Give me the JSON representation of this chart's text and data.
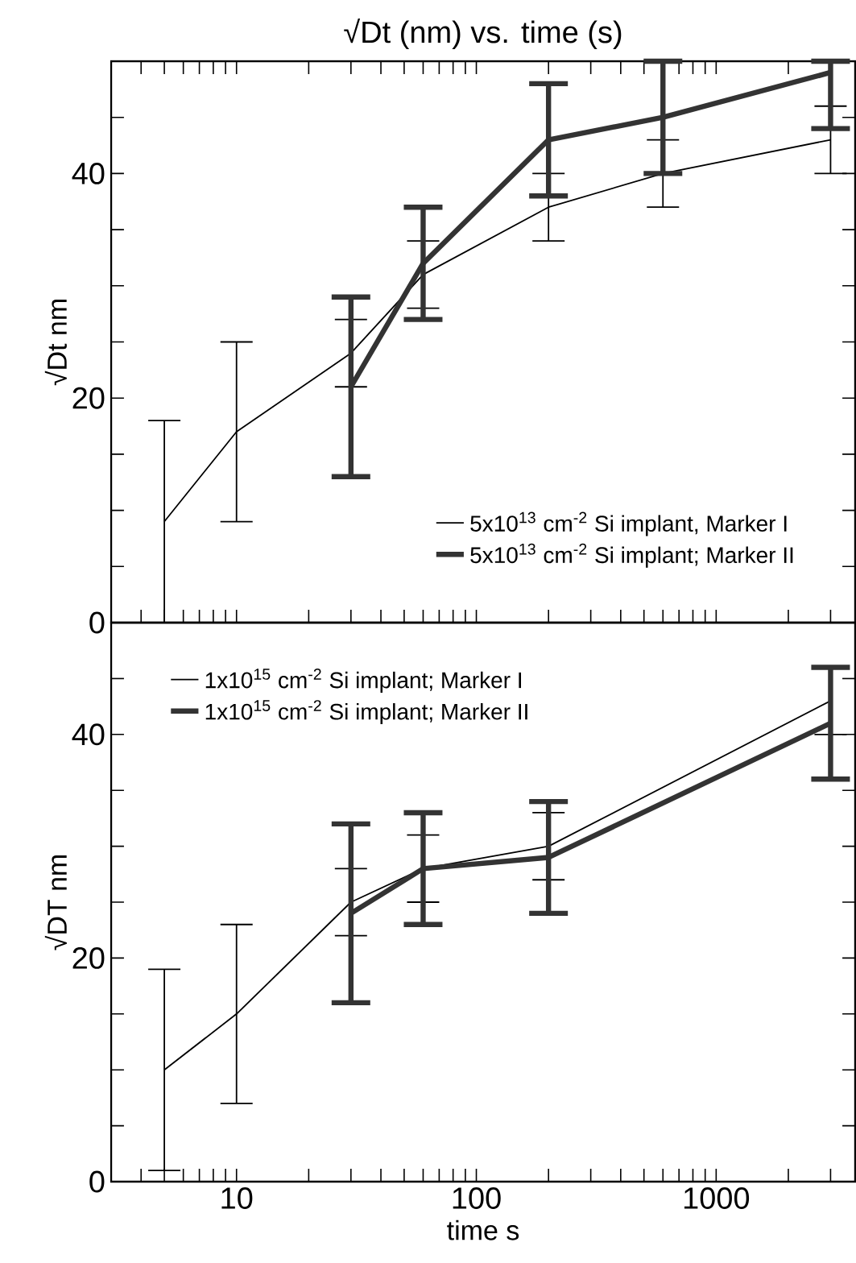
{
  "chart_data": [
    {
      "type": "line",
      "title": "√Dt (nm) vs. time (s)",
      "ylabel": "√Dt nm",
      "log": "x",
      "xlim": [
        3,
        3800
      ],
      "ylim": [
        0,
        50
      ],
      "xticks": [
        {
          "value": 4,
          "label": null
        },
        {
          "value": 5,
          "label": null
        },
        {
          "value": 6,
          "label": null
        },
        {
          "value": 7,
          "label": null
        },
        {
          "value": 8,
          "label": null
        },
        {
          "value": 9,
          "label": null
        },
        10,
        {
          "value": 20,
          "label": null
        },
        {
          "value": 30,
          "label": null
        },
        {
          "value": 40,
          "label": null
        },
        {
          "value": 50,
          "label": null
        },
        {
          "value": 60,
          "label": null
        },
        {
          "value": 70,
          "label": null
        },
        {
          "value": 80,
          "label": null
        },
        {
          "value": 90,
          "label": null
        },
        100,
        {
          "value": 200,
          "label": null
        },
        {
          "value": 300,
          "label": null
        },
        {
          "value": 400,
          "label": null
        },
        {
          "value": 500,
          "label": null
        },
        {
          "value": 600,
          "label": null
        },
        {
          "value": 700,
          "label": null
        },
        {
          "value": 800,
          "label": null
        },
        {
          "value": 900,
          "label": null
        },
        1000,
        {
          "value": 2000,
          "label": null
        },
        {
          "value": 3000,
          "label": null
        }
      ],
      "yticks": [
        0,
        {
          "value": 5,
          "label": null
        },
        {
          "value": 10,
          "label": null
        },
        {
          "value": 15,
          "label": null
        },
        20,
        {
          "value": 25,
          "label": null
        },
        {
          "value": 30,
          "label": null
        },
        {
          "value": 35,
          "label": null
        },
        40,
        {
          "value": 45,
          "label": null
        }
      ],
      "tick_labels": "y",
      "legend": "bottom right",
      "grid": false,
      "marker": "none",
      "line_style": "solid",
      "series": [
        {
          "name": "5x10$^{13}$ cm$^{-2}$ Si implant, Marker I",
          "color": "#000000",
          "x": [
            5,
            10,
            30,
            60,
            200,
            600,
            3000
          ],
          "values": [
            9,
            17,
            24,
            31,
            37,
            40,
            43
          ],
          "errors": [
            9,
            8,
            3,
            3,
            3,
            3,
            3
          ]
        },
        {
          "name": "5x10$^{13}$ cm$^{-2}$ Si implant; Marker II",
          "color": "#333333",
          "x": [
            30,
            60,
            200,
            600,
            3000
          ],
          "values": [
            21,
            32,
            43,
            45,
            49
          ],
          "errors": [
            8,
            5,
            5,
            5,
            [
              44,
              50
            ]
          ]
        }
      ]
    },
    {
      "type": "line",
      "xlabel": "time s",
      "ylabel": "√DT nm",
      "log": "x",
      "xlim": [
        3,
        3800
      ],
      "ylim": [
        0,
        50
      ],
      "xticks": [
        {
          "value": 4,
          "label": null
        },
        {
          "value": 5,
          "label": null
        },
        {
          "value": 6,
          "label": null
        },
        {
          "value": 7,
          "label": null
        },
        {
          "value": 8,
          "label": null
        },
        {
          "value": 9,
          "label": null
        },
        10,
        {
          "value": 20,
          "label": null
        },
        {
          "value": 30,
          "label": null
        },
        {
          "value": 40,
          "label": null
        },
        {
          "value": 50,
          "label": null
        },
        {
          "value": 60,
          "label": null
        },
        {
          "value": 70,
          "label": null
        },
        {
          "value": 80,
          "label": null
        },
        {
          "value": 90,
          "label": null
        },
        100,
        {
          "value": 200,
          "label": null
        },
        {
          "value": 300,
          "label": null
        },
        {
          "value": 400,
          "label": null
        },
        {
          "value": 500,
          "label": null
        },
        {
          "value": 600,
          "label": null
        },
        {
          "value": 700,
          "label": null
        },
        {
          "value": 800,
          "label": null
        },
        {
          "value": 900,
          "label": null
        },
        1000,
        {
          "value": 2000,
          "label": null
        },
        {
          "value": 3000,
          "label": null
        }
      ],
      "yticks": [
        0,
        {
          "value": 5,
          "label": null
        },
        {
          "value": 10,
          "label": null
        },
        {
          "value": 15,
          "label": null
        },
        20,
        {
          "value": 25,
          "label": null
        },
        {
          "value": 30,
          "label": null
        },
        {
          "value": 35,
          "label": null
        },
        40,
        {
          "value": 45,
          "label": null
        }
      ],
      "legend": "top left",
      "grid": false,
      "marker": "none",
      "line_style": "solid",
      "series": [
        {
          "name": "1x10$^{15}$ cm$^{-2}$ Si implant; Marker I",
          "color": "#000000",
          "x": [
            5,
            10,
            30,
            60,
            200,
            3000
          ],
          "values": [
            10,
            15,
            25,
            28,
            30,
            43
          ],
          "errors": [
            9,
            8,
            3,
            3,
            3,
            3
          ]
        },
        {
          "name": "1x10$^{15}$ cm$^{-2}$ Si implant; Marker II",
          "color": "#333333",
          "x": [
            30,
            60,
            200,
            3000
          ],
          "values": [
            24,
            28,
            29,
            41
          ],
          "errors": [
            8,
            5,
            5,
            5
          ]
        }
      ]
    }
  ]
}
